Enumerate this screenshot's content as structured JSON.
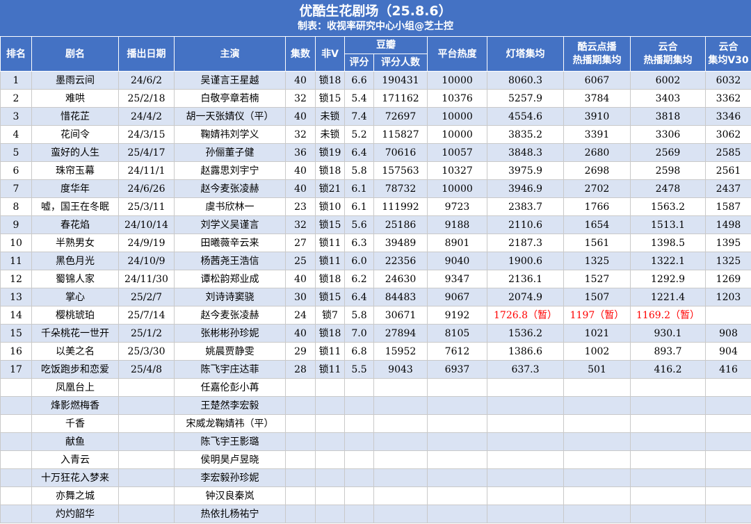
{
  "title": "优酷生花剧场（25.8.6）",
  "subtitle": "制表：收视率研究中心小组@芝士控",
  "headers": {
    "rank": "排名",
    "name": "剧名",
    "date": "播出日期",
    "cast": "主演",
    "episodes": "集数",
    "nonv": "非V",
    "douban": "豆瓣",
    "score": "评分",
    "raters": "评分人数",
    "heat": "平台热度",
    "denta": "灯塔集均",
    "kuyun": "酷云点播\n热播期集均",
    "yunhe": "云合\n热播期集均",
    "yunhe_v30": "云合\n集均V30"
  },
  "rows": [
    {
      "rank": "1",
      "name": "墨雨云间",
      "date": "24/6/2",
      "cast": "吴谨言王星越",
      "ep": "40",
      "v": "锁18",
      "score": "6.6",
      "raters": "190431",
      "heat": "10000",
      "denta": "8060.3",
      "kuyun": "6067",
      "yunhe": "6002",
      "v30": "6032"
    },
    {
      "rank": "2",
      "name": "难哄",
      "date": "25/2/18",
      "cast": "白敬亭章若楠",
      "ep": "32",
      "v": "锁15",
      "score": "5.4",
      "raters": "171162",
      "heat": "10376",
      "denta": "5257.9",
      "kuyun": "3784",
      "yunhe": "3403",
      "v30": "3362"
    },
    {
      "rank": "3",
      "name": "惜花芷",
      "date": "24/4/2",
      "cast": "胡一天张婧仪（平）",
      "ep": "40",
      "v": "未锁",
      "score": "7.4",
      "raters": "72697",
      "heat": "10000",
      "denta": "4554.6",
      "kuyun": "3910",
      "yunhe": "3818",
      "v30": "3346"
    },
    {
      "rank": "4",
      "name": "花间令",
      "date": "24/3/15",
      "cast": "鞠婧祎刘学义",
      "ep": "32",
      "v": "未锁",
      "score": "5.2",
      "raters": "115827",
      "heat": "10000",
      "denta": "3835.2",
      "kuyun": "3391",
      "yunhe": "3306",
      "v30": "3062"
    },
    {
      "rank": "5",
      "name": "蛮好的人生",
      "date": "25/4/17",
      "cast": "孙俪董子健",
      "ep": "36",
      "v": "锁19",
      "score": "6.4",
      "raters": "70616",
      "heat": "10057",
      "denta": "3848.3",
      "kuyun": "2680",
      "yunhe": "2569",
      "v30": "2585"
    },
    {
      "rank": "6",
      "name": "珠帘玉幕",
      "date": "24/11/1",
      "cast": "赵露思刘宇宁",
      "ep": "40",
      "v": "锁18",
      "score": "5.8",
      "raters": "157563",
      "heat": "10327",
      "denta": "3975.9",
      "kuyun": "2698",
      "yunhe": "2598",
      "v30": "2561"
    },
    {
      "rank": "7",
      "name": "度华年",
      "date": "24/6/26",
      "cast": "赵今麦张凌赫",
      "ep": "40",
      "v": "锁21",
      "score": "6.1",
      "raters": "78732",
      "heat": "10000",
      "denta": "3946.9",
      "kuyun": "2702",
      "yunhe": "2478",
      "v30": "2437"
    },
    {
      "rank": "8",
      "name": "嘘，国王在冬眠",
      "date": "25/3/11",
      "cast": "虞书欣林一",
      "ep": "23",
      "v": "锁10",
      "score": "6.1",
      "raters": "111992",
      "heat": "9723",
      "denta": "2383.7",
      "kuyun": "1766",
      "yunhe": "1563.2",
      "v30": "1587"
    },
    {
      "rank": "9",
      "name": "春花焰",
      "date": "24/10/14",
      "cast": "刘学义吴谨言",
      "ep": "32",
      "v": "锁15",
      "score": "5.6",
      "raters": "25186",
      "heat": "9188",
      "denta": "2110.6",
      "kuyun": "1654",
      "yunhe": "1513.1",
      "v30": "1498"
    },
    {
      "rank": "10",
      "name": "半熟男女",
      "date": "24/9/19",
      "cast": "田曦薇辛云来",
      "ep": "27",
      "v": "锁11",
      "score": "6.3",
      "raters": "39489",
      "heat": "8901",
      "denta": "2187.3",
      "kuyun": "1561",
      "yunhe": "1398.5",
      "v30": "1395"
    },
    {
      "rank": "11",
      "name": "黑色月光",
      "date": "24/10/9",
      "cast": "杨茜尧王浩信",
      "ep": "25",
      "v": "锁11",
      "score": "6.0",
      "raters": "22356",
      "heat": "9040",
      "denta": "1900.6",
      "kuyun": "1325",
      "yunhe": "1322.1",
      "v30": "1325"
    },
    {
      "rank": "12",
      "name": "蜀锦人家",
      "date": "24/11/30",
      "cast": "谭松韵郑业成",
      "ep": "40",
      "v": "锁18",
      "score": "6.2",
      "raters": "24630",
      "heat": "9347",
      "denta": "2136.1",
      "kuyun": "1527",
      "yunhe": "1292.9",
      "v30": "1269"
    },
    {
      "rank": "13",
      "name": "掌心",
      "date": "25/2/7",
      "cast": "刘诗诗窦骁",
      "ep": "30",
      "v": "锁15",
      "score": "6.4",
      "raters": "84483",
      "heat": "9067",
      "denta": "2074.9",
      "kuyun": "1507",
      "yunhe": "1221.4",
      "v30": "1203"
    },
    {
      "rank": "14",
      "name": "樱桃琥珀",
      "date": "25/7/14",
      "cast": "赵今麦张凌赫",
      "ep": "24",
      "v": "锁7",
      "score": "5.8",
      "raters": "30671",
      "heat": "9192",
      "denta": "1726.8（暂）",
      "kuyun": "1197（暂）",
      "yunhe": "1169.2（暂）",
      "v30": "",
      "red": true
    },
    {
      "rank": "15",
      "name": "千朵桃花一世开",
      "date": "25/1/2",
      "cast": "张彬彬孙珍妮",
      "ep": "40",
      "v": "锁18",
      "score": "7.0",
      "raters": "27894",
      "heat": "8105",
      "denta": "1536.2",
      "kuyun": "1021",
      "yunhe": "930.1",
      "v30": "908"
    },
    {
      "rank": "16",
      "name": "以美之名",
      "date": "25/3/30",
      "cast": "姚晨贾静雯",
      "ep": "29",
      "v": "锁11",
      "score": "6.8",
      "raters": "15952",
      "heat": "7612",
      "denta": "1386.6",
      "kuyun": "1002",
      "yunhe": "893.7",
      "v30": "904"
    },
    {
      "rank": "17",
      "name": "吃饭跑步和恋爱",
      "date": "25/4/8",
      "cast": "陈飞宇庄达菲",
      "ep": "28",
      "v": "锁11",
      "score": "5.5",
      "raters": "9043",
      "heat": "6937",
      "denta": "637.3",
      "kuyun": "501",
      "yunhe": "416.2",
      "v30": "416"
    },
    {
      "rank": "",
      "name": "凤凰台上",
      "date": "",
      "cast": "任嘉伦彭小苒",
      "ep": "",
      "v": "",
      "score": "",
      "raters": "",
      "heat": "",
      "denta": "",
      "kuyun": "",
      "yunhe": "",
      "v30": ""
    },
    {
      "rank": "",
      "name": "烽影燃梅香",
      "date": "",
      "cast": "王楚然李宏毅",
      "ep": "",
      "v": "",
      "score": "",
      "raters": "",
      "heat": "",
      "denta": "",
      "kuyun": "",
      "yunhe": "",
      "v30": ""
    },
    {
      "rank": "",
      "name": "千香",
      "date": "",
      "cast": "宋威龙鞠婧祎（平）",
      "ep": "",
      "v": "",
      "score": "",
      "raters": "",
      "heat": "",
      "denta": "",
      "kuyun": "",
      "yunhe": "",
      "v30": ""
    },
    {
      "rank": "",
      "name": "献鱼",
      "date": "",
      "cast": "陈飞宇王影璐",
      "ep": "",
      "v": "",
      "score": "",
      "raters": "",
      "heat": "",
      "denta": "",
      "kuyun": "",
      "yunhe": "",
      "v30": ""
    },
    {
      "rank": "",
      "name": "入青云",
      "date": "",
      "cast": "侯明昊卢昱晓",
      "ep": "",
      "v": "",
      "score": "",
      "raters": "",
      "heat": "",
      "denta": "",
      "kuyun": "",
      "yunhe": "",
      "v30": ""
    },
    {
      "rank": "",
      "name": "十万狂花入梦来",
      "date": "",
      "cast": "李宏毅孙珍妮",
      "ep": "",
      "v": "",
      "score": "",
      "raters": "",
      "heat": "",
      "denta": "",
      "kuyun": "",
      "yunhe": "",
      "v30": ""
    },
    {
      "rank": "",
      "name": "亦舞之城",
      "date": "",
      "cast": "钟汉良秦岚",
      "ep": "",
      "v": "",
      "score": "",
      "raters": "",
      "heat": "",
      "denta": "",
      "kuyun": "",
      "yunhe": "",
      "v30": ""
    },
    {
      "rank": "",
      "name": "灼灼韶华",
      "date": "",
      "cast": "热依扎杨祐宁",
      "ep": "",
      "v": "",
      "score": "",
      "raters": "",
      "heat": "",
      "denta": "",
      "kuyun": "",
      "yunhe": "",
      "v30": ""
    }
  ]
}
